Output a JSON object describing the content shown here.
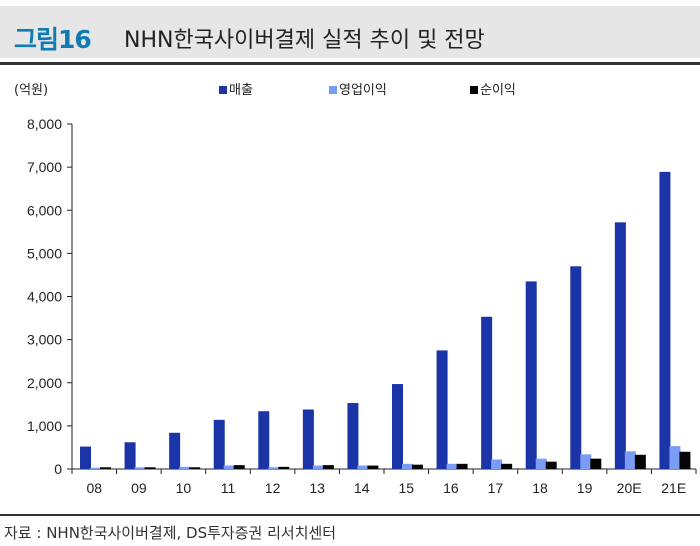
{
  "figure": {
    "number": "그림16",
    "title": "NHN한국사이버결제 실적 추이 및 전망",
    "source": "자료 : NHN한국사이버결제, DS투자증권 리서치센터"
  },
  "chart_data": {
    "type": "bar",
    "unit": "(억원)",
    "categories": [
      "08",
      "09",
      "10",
      "11",
      "12",
      "13",
      "14",
      "15",
      "16",
      "17",
      "18",
      "19",
      "20E",
      "21E"
    ],
    "series": [
      {
        "name": "매출",
        "color": "#1b35a8",
        "values": [
          520,
          620,
          840,
          1140,
          1340,
          1380,
          1530,
          1970,
          2750,
          3530,
          4350,
          4700,
          5720,
          6890
        ]
      },
      {
        "name": "영업이익",
        "color": "#7b9cf5",
        "values": [
          30,
          40,
          50,
          80,
          40,
          80,
          80,
          120,
          120,
          220,
          240,
          340,
          410,
          530
        ]
      },
      {
        "name": "순이익",
        "color": "#050505",
        "values": [
          40,
          40,
          40,
          90,
          50,
          90,
          80,
          100,
          120,
          120,
          170,
          240,
          330,
          400
        ]
      }
    ],
    "yticks": [
      "0",
      "1,000",
      "2,000",
      "3,000",
      "4,000",
      "5,000",
      "6,000",
      "7,000",
      "8,000"
    ],
    "ylim": [
      0,
      8000
    ],
    "legend_position": "top",
    "grid": false
  }
}
